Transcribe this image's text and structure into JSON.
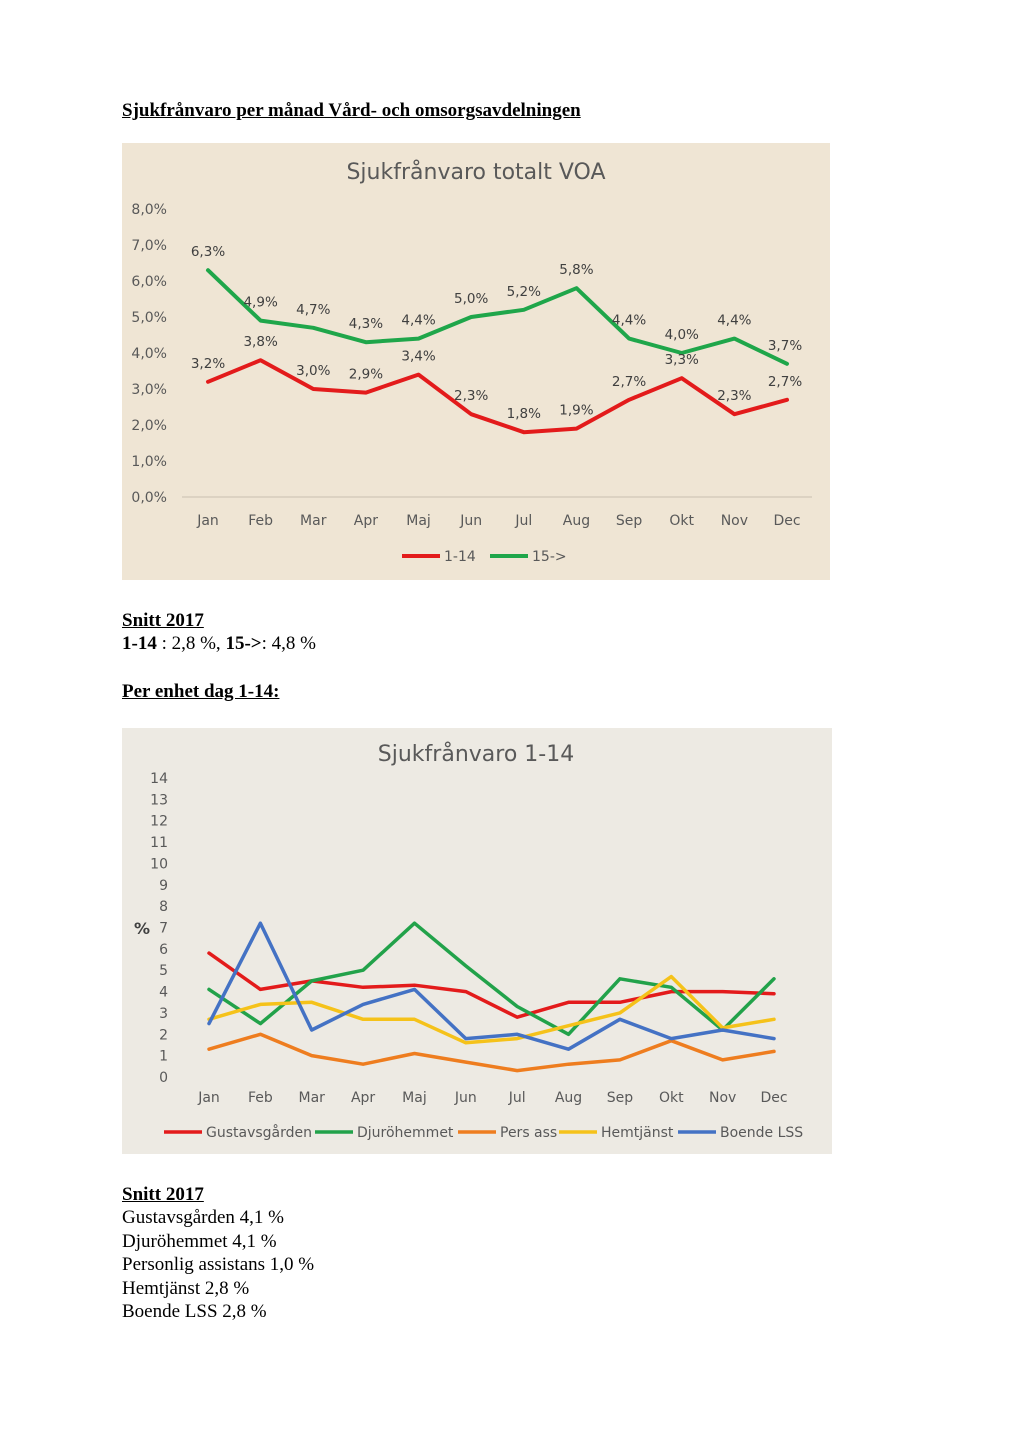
{
  "heading1": "Sjukfrånvaro per månad Vård- och omsorgsavdelningen",
  "snitt1": {
    "title": "Snitt 2017",
    "s1_label": "1-14",
    "s1_value": " : 2,8 %, ",
    "s2_label": "15->",
    "s2_value": ": 4,8 %"
  },
  "heading2": "Per enhet dag 1-14:",
  "snitt2": {
    "title": "Snitt 2017",
    "lines": [
      "Gustavsgården 4,1 %",
      "Djuröhemmet 4,1 %",
      "Personlig assistans 1,0 %",
      "Hemtjänst 2,8 %",
      "Boende LSS 2,8 %"
    ]
  },
  "chart_data": [
    {
      "type": "line",
      "title": "Sjukfrånvaro  totalt VOA",
      "categories": [
        "Jan",
        "Feb",
        "Mar",
        "Apr",
        "Maj",
        "Jun",
        "Jul",
        "Aug",
        "Sep",
        "Okt",
        "Nov",
        "Dec"
      ],
      "yticks": [
        "0,0%",
        "1,0%",
        "2,0%",
        "3,0%",
        "4,0%",
        "5,0%",
        "6,0%",
        "7,0%",
        "8,0%"
      ],
      "ylim": [
        0,
        8
      ],
      "grid": false,
      "legend_position": "bottom",
      "series": [
        {
          "name": "1-14",
          "color": "#e31b1b",
          "values": [
            3.2,
            3.8,
            3.0,
            2.9,
            3.4,
            2.3,
            1.8,
            1.9,
            2.7,
            3.3,
            2.3,
            2.7
          ],
          "labels": [
            "3,2%",
            "3,8%",
            "3,0%",
            "2,9%",
            "3,4%",
            "2,3%",
            "1,8%",
            "1,9%",
            "2,7%",
            "3,3%",
            "2,3%",
            "2,7%"
          ]
        },
        {
          "name": "15->",
          "color": "#1fa64a",
          "values": [
            6.3,
            4.9,
            4.7,
            4.3,
            4.4,
            5.0,
            5.2,
            5.8,
            4.4,
            4.0,
            4.4,
            3.7
          ],
          "labels": [
            "6,3%",
            "4,9%",
            "4,7%",
            "4,3%",
            "4,4%",
            "5,0%",
            "5,2%",
            "5,8%",
            "4,4%",
            "4,0%",
            "4,4%",
            "3,7%"
          ]
        }
      ]
    },
    {
      "type": "line",
      "title": "Sjukfrånvaro  1-14",
      "ylabel": "%",
      "categories": [
        "Jan",
        "Feb",
        "Mar",
        "Apr",
        "Maj",
        "Jun",
        "Jul",
        "Aug",
        "Sep",
        "Okt",
        "Nov",
        "Dec"
      ],
      "yticks": [
        "0",
        "1",
        "2",
        "3",
        "4",
        "5",
        "6",
        "7",
        "8",
        "9",
        "10",
        "11",
        "12",
        "13",
        "14"
      ],
      "ylim": [
        0,
        14
      ],
      "grid": false,
      "legend_position": "bottom",
      "series": [
        {
          "name": "Gustavsgården",
          "color": "#e31b1b",
          "values": [
            5.8,
            4.1,
            4.5,
            4.2,
            4.3,
            4.0,
            2.8,
            3.5,
            3.5,
            4.0,
            4.0,
            3.9
          ]
        },
        {
          "name": "Djuröhemmet",
          "color": "#22a24a",
          "values": [
            4.1,
            2.5,
            4.5,
            5.0,
            7.2,
            5.2,
            3.3,
            2.0,
            4.6,
            4.2,
            2.2,
            4.6
          ]
        },
        {
          "name": "Pers ass",
          "color": "#ee7d1f",
          "values": [
            1.3,
            2.0,
            1.0,
            0.6,
            1.1,
            0.7,
            0.3,
            0.6,
            0.8,
            1.7,
            0.8,
            1.2
          ]
        },
        {
          "name": "Hemtjänst",
          "color": "#f5c21a",
          "values": [
            2.7,
            3.4,
            3.5,
            2.7,
            2.7,
            1.6,
            1.8,
            2.4,
            3.0,
            4.7,
            2.3,
            2.7
          ]
        },
        {
          "name": "Boende LSS",
          "color": "#4472c4",
          "values": [
            2.5,
            7.2,
            2.2,
            3.4,
            4.1,
            1.8,
            2.0,
            1.3,
            2.7,
            1.8,
            2.2,
            1.8
          ]
        }
      ]
    }
  ]
}
